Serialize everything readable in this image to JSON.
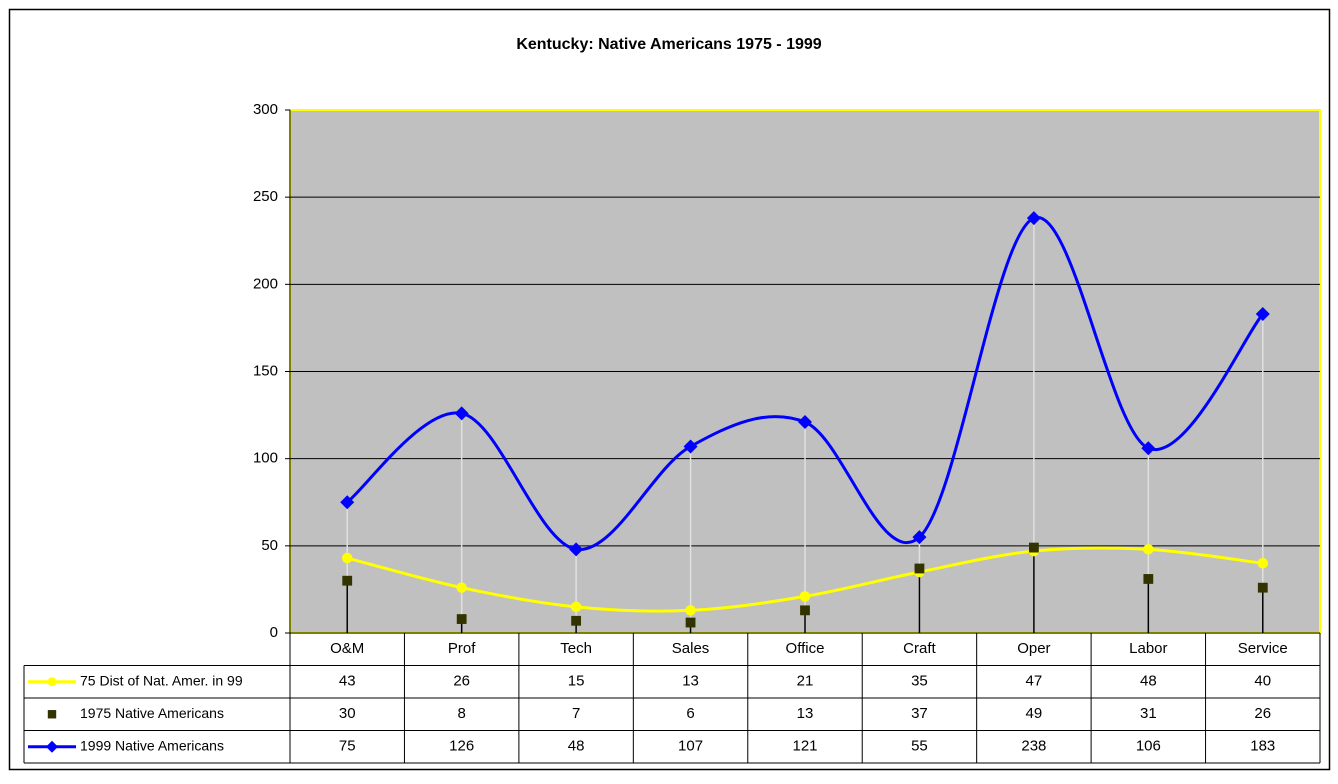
{
  "chart_data": {
    "type": "line",
    "title": "Kentucky: Native Americans 1975 - 1999",
    "categories": [
      "O&M",
      "Prof",
      "Tech",
      "Sales",
      "Office",
      "Craft",
      "Oper",
      "Labor",
      "Service"
    ],
    "series": [
      {
        "name": "75 Dist of Nat. Amer. in 99",
        "color": "#ffff00",
        "marker": "circle",
        "line": true,
        "values": [
          43,
          26,
          15,
          13,
          21,
          35,
          47,
          48,
          40
        ]
      },
      {
        "name": "1975 Native Americans",
        "color": "#333300",
        "marker": "square",
        "line": false,
        "drop_line_color": "#000000",
        "values": [
          30,
          8,
          7,
          6,
          13,
          37,
          49,
          31,
          26
        ]
      },
      {
        "name": "1999 Native Americans",
        "color": "#0000ff",
        "marker": "diamond",
        "line": true,
        "drop_line_color": "#e0e0e0",
        "values": [
          75,
          126,
          48,
          107,
          121,
          55,
          238,
          106,
          183
        ]
      }
    ],
    "smooth": true,
    "data_table": true,
    "ylim": [
      0,
      300
    ],
    "yticks": [
      0,
      50,
      100,
      150,
      200,
      250,
      300
    ],
    "grid": true
  }
}
